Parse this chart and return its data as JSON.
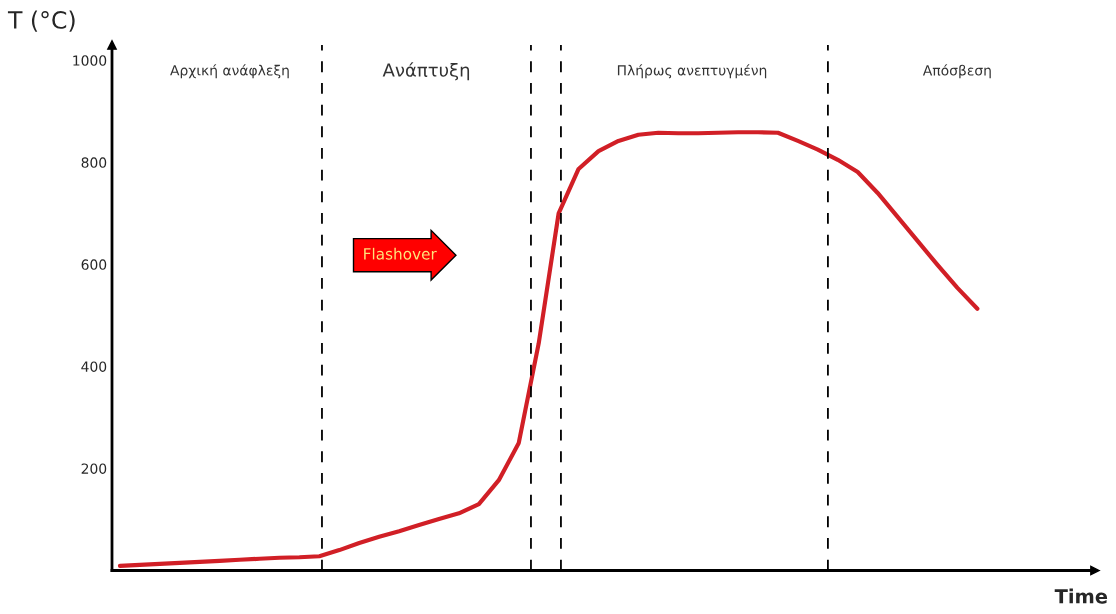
{
  "chart_data": {
    "type": "line",
    "ylabel": "T (°C)",
    "xlabel": "Time",
    "categories": [
      null,
      null,
      null,
      null,
      null,
      null,
      null,
      null,
      null,
      null,
      null,
      null,
      null,
      null,
      null,
      null,
      null,
      null,
      null,
      null,
      null,
      null,
      null,
      null,
      null,
      null,
      null,
      null,
      null,
      null,
      null,
      null,
      null,
      null,
      null,
      null,
      null,
      null,
      null,
      null,
      null,
      null,
      null,
      null
    ],
    "series": [
      {
        "color": "#d11f26",
        "values": [
          9,
          11,
          13,
          15,
          17,
          19,
          21,
          23,
          25,
          26,
          28,
          40,
          54,
          66,
          77,
          89,
          101,
          112,
          130,
          177,
          250,
          445,
          700,
          787,
          822,
          842,
          854,
          858,
          857,
          857,
          858,
          859,
          859,
          858,
          842,
          825,
          805,
          781,
          740,
          693,
          646,
          599,
          554,
          513
        ]
      }
    ],
    "ylim": [
      0,
      1030
    ],
    "yticks": [
      200,
      400,
      600,
      800,
      1000
    ],
    "tick_labels": "y",
    "grid": false,
    "legend": false,
    "marker": "none",
    "line_style": "solid",
    "annotations": [
      "Αρχική ανάφλεξη",
      "Ανάπτυξη",
      "Πλήρως ανεπτυγμένη",
      "Απόσβεση",
      "Flashover"
    ]
  }
}
